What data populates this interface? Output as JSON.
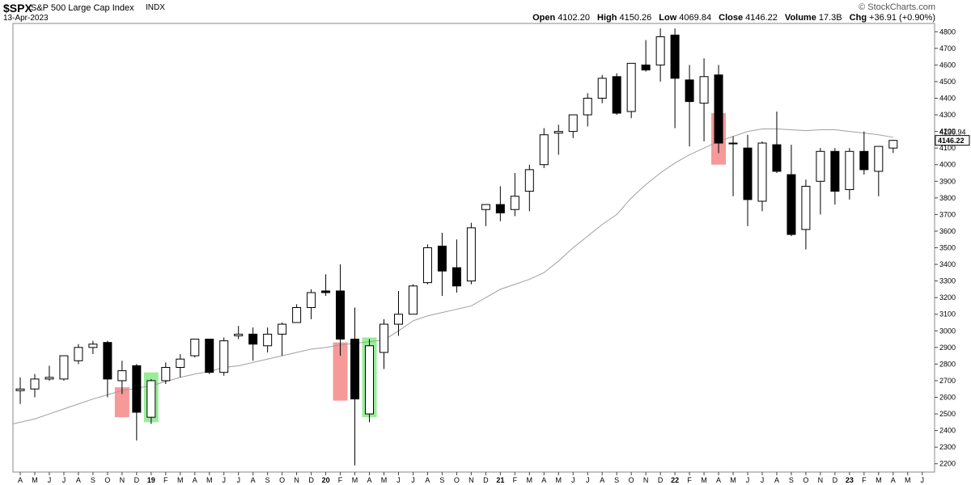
{
  "header": {
    "symbol": "$SPX",
    "name": "S&P 500 Large Cap Index",
    "exchange": "INDX",
    "date": "13-Apr-2023",
    "brand": "© StockCharts.com",
    "ohlc": [
      {
        "label": "Open",
        "value": "4102.20"
      },
      {
        "label": "High",
        "value": "4150.26"
      },
      {
        "label": "Low",
        "value": "4069.84"
      },
      {
        "label": "Close",
        "value": "4146.22"
      },
      {
        "label": "Volume",
        "value": "17.3B"
      },
      {
        "label": "Chg",
        "value": "+36.91 (+0.90%)"
      }
    ]
  },
  "colors": {
    "up_fill": "#ffffff",
    "down_fill": "#000000",
    "sma": "#a0a0a0",
    "red_zone": "#f28080",
    "green_zone": "#80e880",
    "grid": "#e6e6e6"
  },
  "chart_data": {
    "type": "candlestick",
    "interval": "monthly",
    "ylim": [
      2150,
      4850
    ],
    "yticks": [
      2200,
      2300,
      2400,
      2500,
      2600,
      2700,
      2800,
      2900,
      3000,
      3100,
      3200,
      3300,
      3400,
      3500,
      3600,
      3700,
      3800,
      3900,
      4000,
      4100,
      4200,
      4300,
      4400,
      4500,
      4600,
      4700,
      4800
    ],
    "last_price_label": "4146.22",
    "x_labels": [
      "A",
      "M",
      "J",
      "J",
      "A",
      "S",
      "O",
      "N",
      "D",
      "19",
      "F",
      "M",
      "A",
      "M",
      "J",
      "J",
      "A",
      "S",
      "O",
      "N",
      "D",
      "20",
      "F",
      "M",
      "A",
      "M",
      "J",
      "J",
      "A",
      "S",
      "O",
      "N",
      "D",
      "21",
      "F",
      "M",
      "A",
      "M",
      "J",
      "J",
      "A",
      "S",
      "O",
      "N",
      "D",
      "22",
      "F",
      "M",
      "A",
      "M",
      "J",
      "J",
      "A",
      "S",
      "O",
      "N",
      "D",
      "23",
      "F",
      "M",
      "A",
      "M",
      "J"
    ],
    "candles": [
      {
        "o": 2640,
        "h": 2720,
        "l": 2560,
        "c": 2650
      },
      {
        "o": 2650,
        "h": 2740,
        "l": 2600,
        "c": 2710
      },
      {
        "o": 2710,
        "h": 2790,
        "l": 2700,
        "c": 2720
      },
      {
        "o": 2710,
        "h": 2850,
        "l": 2700,
        "c": 2850
      },
      {
        "o": 2820,
        "h": 2920,
        "l": 2800,
        "c": 2900
      },
      {
        "o": 2900,
        "h": 2940,
        "l": 2860,
        "c": 2920
      },
      {
        "o": 2930,
        "h": 2940,
        "l": 2600,
        "c": 2710
      },
      {
        "o": 2700,
        "h": 2820,
        "l": 2620,
        "c": 2760
      },
      {
        "o": 2790,
        "h": 2800,
        "l": 2340,
        "c": 2510
      },
      {
        "o": 2480,
        "h": 2710,
        "l": 2440,
        "c": 2700
      },
      {
        "o": 2700,
        "h": 2810,
        "l": 2680,
        "c": 2780
      },
      {
        "o": 2780,
        "h": 2860,
        "l": 2720,
        "c": 2830
      },
      {
        "o": 2850,
        "h": 2950,
        "l": 2840,
        "c": 2950
      },
      {
        "o": 2950,
        "h": 2950,
        "l": 2740,
        "c": 2750
      },
      {
        "o": 2750,
        "h": 2960,
        "l": 2730,
        "c": 2940
      },
      {
        "o": 2970,
        "h": 3030,
        "l": 2950,
        "c": 2980
      },
      {
        "o": 2980,
        "h": 3020,
        "l": 2820,
        "c": 2920
      },
      {
        "o": 2910,
        "h": 3020,
        "l": 2870,
        "c": 2980
      },
      {
        "o": 2980,
        "h": 3050,
        "l": 2850,
        "c": 3040
      },
      {
        "o": 3050,
        "h": 3160,
        "l": 3050,
        "c": 3140
      },
      {
        "o": 3140,
        "h": 3250,
        "l": 3070,
        "c": 3230
      },
      {
        "o": 3240,
        "h": 3340,
        "l": 3210,
        "c": 3230
      },
      {
        "o": 3240,
        "h": 3400,
        "l": 2850,
        "c": 2950
      },
      {
        "o": 2950,
        "h": 3140,
        "l": 2190,
        "c": 2590
      },
      {
        "o": 2500,
        "h": 2950,
        "l": 2450,
        "c": 2910
      },
      {
        "o": 2870,
        "h": 3070,
        "l": 2770,
        "c": 3040
      },
      {
        "o": 3040,
        "h": 3240,
        "l": 2970,
        "c": 3100
      },
      {
        "o": 3100,
        "h": 3280,
        "l": 3100,
        "c": 3270
      },
      {
        "o": 3290,
        "h": 3520,
        "l": 3280,
        "c": 3500
      },
      {
        "o": 3510,
        "h": 3590,
        "l": 3210,
        "c": 3360
      },
      {
        "o": 3380,
        "h": 3550,
        "l": 3230,
        "c": 3270
      },
      {
        "o": 3300,
        "h": 3650,
        "l": 3280,
        "c": 3620
      },
      {
        "o": 3730,
        "h": 3760,
        "l": 3630,
        "c": 3760
      },
      {
        "o": 3760,
        "h": 3870,
        "l": 3660,
        "c": 3710
      },
      {
        "o": 3730,
        "h": 3950,
        "l": 3690,
        "c": 3810
      },
      {
        "o": 3840,
        "h": 4000,
        "l": 3720,
        "c": 3970
      },
      {
        "o": 4000,
        "h": 4220,
        "l": 3980,
        "c": 4180
      },
      {
        "o": 4190,
        "h": 4240,
        "l": 4060,
        "c": 4200
      },
      {
        "o": 4200,
        "h": 4300,
        "l": 4160,
        "c": 4300
      },
      {
        "o": 4300,
        "h": 4430,
        "l": 4230,
        "c": 4400
      },
      {
        "o": 4400,
        "h": 4540,
        "l": 4370,
        "c": 4520
      },
      {
        "o": 4530,
        "h": 4550,
        "l": 4300,
        "c": 4310
      },
      {
        "o": 4320,
        "h": 4610,
        "l": 4280,
        "c": 4610
      },
      {
        "o": 4600,
        "h": 4750,
        "l": 4560,
        "c": 4570
      },
      {
        "o": 4600,
        "h": 4820,
        "l": 4500,
        "c": 4770
      },
      {
        "o": 4780,
        "h": 4820,
        "l": 4220,
        "c": 4520
      },
      {
        "o": 4510,
        "h": 4600,
        "l": 4110,
        "c": 4380
      },
      {
        "o": 4370,
        "h": 4640,
        "l": 4140,
        "c": 4530
      },
      {
        "o": 4540,
        "h": 4600,
        "l": 4070,
        "c": 4130
      },
      {
        "o": 4130,
        "h": 4170,
        "l": 3810,
        "c": 4130
      },
      {
        "o": 4100,
        "h": 4180,
        "l": 3630,
        "c": 3790
      },
      {
        "o": 3780,
        "h": 4140,
        "l": 3720,
        "c": 4130
      },
      {
        "o": 4120,
        "h": 4320,
        "l": 3950,
        "c": 3960
      },
      {
        "o": 3940,
        "h": 4120,
        "l": 3570,
        "c": 3580
      },
      {
        "o": 3610,
        "h": 3910,
        "l": 3490,
        "c": 3870
      },
      {
        "o": 3900,
        "h": 4100,
        "l": 3700,
        "c": 4080
      },
      {
        "o": 4080,
        "h": 4100,
        "l": 3760,
        "c": 3840
      },
      {
        "o": 3850,
        "h": 4100,
        "l": 3790,
        "c": 4080
      },
      {
        "o": 4080,
        "h": 4200,
        "l": 3940,
        "c": 3970
      },
      {
        "o": 3960,
        "h": 4110,
        "l": 3810,
        "c": 4110
      },
      {
        "o": 4100,
        "h": 4150,
        "l": 4070,
        "c": 4146
      }
    ],
    "sma_label": "4136.94",
    "sma": [
      2440,
      2470,
      2500,
      2530,
      2560,
      2590,
      2615,
      2640,
      2655,
      2670,
      2695,
      2720,
      2740,
      2755,
      2780,
      2790,
      2810,
      2830,
      2850,
      2870,
      2890,
      2900,
      2915,
      2925,
      2935,
      2945,
      3000,
      3060,
      3090,
      3110,
      3130,
      3150,
      3200,
      3250,
      3280,
      3310,
      3350,
      3420,
      3500,
      3570,
      3640,
      3700,
      3800,
      3880,
      3950,
      4010,
      4060,
      4100,
      4140,
      4170,
      4200,
      4215,
      4215,
      4210,
      4205,
      4210,
      4210,
      4200,
      4190,
      4180,
      4165
    ],
    "zones": [
      {
        "color": "red",
        "index": 7,
        "low": 2480,
        "high": 2660
      },
      {
        "color": "green",
        "index": 9,
        "low": 2450,
        "high": 2750
      },
      {
        "color": "red",
        "index": 22,
        "low": 2580,
        "high": 2930
      },
      {
        "color": "green",
        "index": 24,
        "low": 2480,
        "high": 2960
      },
      {
        "color": "red",
        "index": 48,
        "low": 4000,
        "high": 4310
      }
    ]
  }
}
